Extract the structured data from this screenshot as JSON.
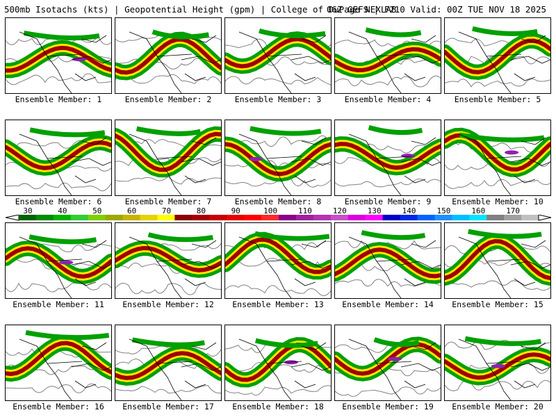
{
  "header": {
    "title_left": "500mb Isotachs (kts) | Geopotential Height (gpm) | College of DuPage NEXLAB",
    "title_right": "06Z GEFS | F210 Valid: 00Z TUE NOV 18 2025"
  },
  "colorbar": {
    "tick_labels": [
      "30",
      "40",
      "50",
      "60",
      "70",
      "80",
      "90",
      "100",
      "110",
      "120",
      "130",
      "140",
      "150",
      "160",
      "170"
    ],
    "colors": [
      "#006400",
      "#008c00",
      "#00b400",
      "#32cd32",
      "#7fd000",
      "#9ca800",
      "#c8b400",
      "#e6d200",
      "#ffff00",
      "#8b0000",
      "#a50000",
      "#c80000",
      "#e60000",
      "#ff0000",
      "#ff2828",
      "#8b008b",
      "#a020a0",
      "#b432b4",
      "#c850c8",
      "#dc00dc",
      "#ff00ff",
      "#0000c8",
      "#0028e6",
      "#0064ff",
      "#1e90ff",
      "#00bfff",
      "#00e5ff",
      "#808080",
      "#a0a0a0",
      "#c0c0c0"
    ],
    "left_arrow_color": "#ffffff",
    "right_arrow_color": "#ffffff"
  },
  "panels": [
    {
      "label": "Ensemble Member: 1"
    },
    {
      "label": "Ensemble Member: 2"
    },
    {
      "label": "Ensemble Member: 3"
    },
    {
      "label": "Ensemble Member: 4"
    },
    {
      "label": "Ensemble Member: 5"
    },
    {
      "label": "Ensemble Member: 6"
    },
    {
      "label": "Ensemble Member: 7"
    },
    {
      "label": "Ensemble Member: 8"
    },
    {
      "label": "Ensemble Member: 9"
    },
    {
      "label": "Ensemble Member: 10"
    },
    {
      "label": "Ensemble Member: 11"
    },
    {
      "label": "Ensemble Member: 12"
    },
    {
      "label": "Ensemble Member: 13"
    },
    {
      "label": "Ensemble Member: 14"
    },
    {
      "label": "Ensemble Member: 15"
    },
    {
      "label": "Ensemble Member: 16"
    },
    {
      "label": "Ensemble Member: 17"
    },
    {
      "label": "Ensemble Member: 18"
    },
    {
      "label": "Ensemble Member: 19"
    },
    {
      "label": "Ensemble Member: 20"
    }
  ],
  "jet_colors": {
    "weak": "#00a000",
    "moderate": "#ffe600",
    "strong": "#a00000",
    "extreme": "#9020b0",
    "background": "#ffffff",
    "coast": "#000000",
    "height_contour": "#808080"
  }
}
